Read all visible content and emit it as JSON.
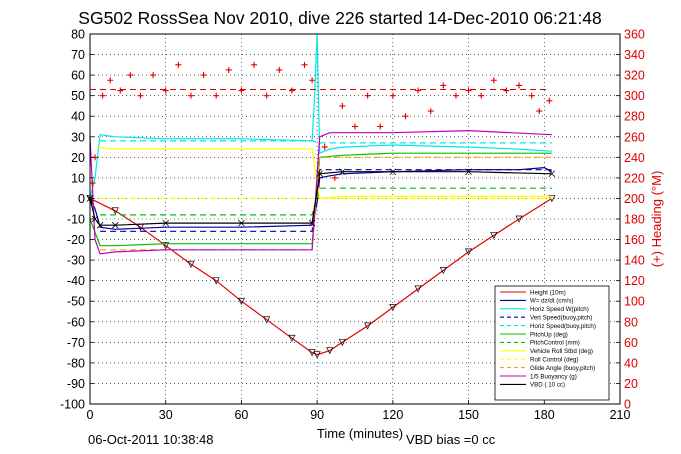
{
  "chart_data": {
    "type": "line",
    "title": "SG502 RossSea Nov 2010, dive 226 started 14-Dec-2010 06:21:48",
    "xlabel": "Time (minutes)",
    "ylabel_right": "(+) Heading (°M)",
    "xlim": [
      0,
      210
    ],
    "ylim": [
      -100,
      80
    ],
    "ylim_right": [
      0,
      360
    ],
    "x_ticks": [
      "0",
      "30",
      "60",
      "90",
      "120",
      "150",
      "180",
      "210"
    ],
    "y_ticks": [
      "80",
      "70",
      "60",
      "50",
      "40",
      "30",
      "20",
      "10",
      "0",
      "-10",
      "-20",
      "-30",
      "-40",
      "-50",
      "-60",
      "-70",
      "-80",
      "-90",
      "-100"
    ],
    "y_right_ticks": [
      "360",
      "340",
      "320",
      "300",
      "280",
      "260",
      "240",
      "220",
      "200",
      "180",
      "160",
      "140",
      "120",
      "100",
      "80",
      "60",
      "40",
      "20",
      "0"
    ],
    "grid": true,
    "footer_left": "06-Oct-2011 10:38:48",
    "footer_right": "VBD bias =0 cc",
    "legend_position": "bottom-right",
    "colors": {
      "height": "#e00000",
      "w": "#0000a0",
      "hspeed": "#00e8e8",
      "pitch": "#00c000",
      "roll": "#ffff00",
      "glide": "#ffa000",
      "buoy": "#c000c0",
      "vbd": "#000000",
      "heading": "#e00000",
      "axis_right": "#e00000"
    },
    "series": [
      {
        "name": "Height (10m)",
        "key": "height",
        "style": "solid",
        "x": [
          0,
          10,
          20,
          30,
          40,
          50,
          60,
          70,
          80,
          88,
          90,
          95,
          100,
          110,
          120,
          130,
          140,
          150,
          160,
          170,
          183
        ],
        "y": [
          0,
          -6,
          -14,
          -23,
          -32,
          -40,
          -50,
          -59,
          -68,
          -75,
          -76,
          -74,
          -70,
          -62,
          -53,
          -44,
          -35,
          -26,
          -18,
          -10,
          0
        ]
      },
      {
        "name": "W= dz/dt (cm/s)",
        "key": "w",
        "style": "solid",
        "x": [
          0,
          2,
          4,
          10,
          30,
          60,
          88,
          89,
          90,
          91,
          95,
          100,
          120,
          150,
          170,
          180,
          183
        ],
        "y": [
          0,
          -5,
          -14,
          -15,
          -14,
          -14,
          -13,
          -8,
          -2,
          10,
          11,
          12,
          13,
          14,
          14,
          15,
          13
        ]
      },
      {
        "name": "Horiz Speed W(pitch)",
        "key": "hspeed",
        "style": "solid",
        "x": [
          0,
          2,
          4,
          10,
          30,
          60,
          88,
          89,
          90,
          91,
          95,
          100,
          120,
          150,
          170,
          183
        ],
        "y": [
          0,
          10,
          31,
          30,
          29,
          29,
          28,
          50,
          80,
          22,
          24,
          25,
          26,
          25,
          24,
          23
        ]
      },
      {
        "name": "Vert Speed(buoy,pitch)",
        "key": "w",
        "style": "dashed",
        "x": [
          4,
          88,
          91,
          183
        ],
        "y": [
          -16,
          -16,
          14,
          14
        ]
      },
      {
        "name": "Horiz Speed(buoy,pitch)",
        "key": "hspeed",
        "style": "dashed",
        "x": [
          4,
          88,
          91,
          183
        ],
        "y": [
          28,
          28,
          27,
          27
        ]
      },
      {
        "name": "PitchUp (deg)",
        "key": "pitch",
        "style": "solid",
        "x": [
          0,
          4,
          10,
          30,
          60,
          88,
          91,
          100,
          120,
          150,
          183
        ],
        "y": [
          -10,
          -23,
          -23,
          -22,
          -22,
          -22,
          20,
          21,
          22,
          22,
          22
        ]
      },
      {
        "name": "PitchControl (mm)",
        "key": "pitch",
        "style": "dashed",
        "x": [
          4,
          88,
          91,
          183
        ],
        "y": [
          -8,
          -8,
          5,
          5
        ]
      },
      {
        "name": "Vehicle Roll Stbd (deg)",
        "key": "roll",
        "style": "solid",
        "x": [
          3,
          10,
          30,
          60,
          88,
          91,
          100,
          120,
          150,
          183
        ],
        "y": [
          25,
          24,
          24,
          24,
          24,
          0,
          1,
          1,
          1,
          1
        ]
      },
      {
        "name": "Roll Control (deg)",
        "key": "roll",
        "style": "dashed",
        "x": [
          4,
          88,
          91,
          183
        ],
        "y": [
          0,
          0,
          0,
          0
        ]
      },
      {
        "name": "Glide Angle (buoy,pitch)",
        "key": "glide",
        "style": "dashed",
        "x": [
          4,
          88,
          91,
          183
        ],
        "y": [
          -25,
          -25,
          20,
          20
        ]
      },
      {
        "name": "1/5 Buoyancy (g)",
        "key": "buoy",
        "style": "solid",
        "x": [
          0,
          2,
          4,
          10,
          30,
          60,
          88,
          91,
          95,
          120,
          150,
          183
        ],
        "y": [
          30,
          -20,
          -27,
          -26,
          -25,
          -25,
          -25,
          30,
          32,
          32,
          33,
          31
        ]
      },
      {
        "name": "VBD ( 10 cc)",
        "key": "vbd",
        "style": "solid",
        "x": [
          0,
          2,
          4,
          10,
          30,
          60,
          88,
          91,
          100,
          120,
          150,
          183
        ],
        "y": [
          0,
          -10,
          -13,
          -13,
          -12,
          -12,
          -12,
          12,
          13,
          13,
          13,
          12
        ]
      }
    ],
    "heading": {
      "name": "Heading (deg M)",
      "axis": "right",
      "x": [
        1,
        2,
        5,
        8,
        12,
        16,
        20,
        25,
        30,
        35,
        40,
        45,
        50,
        55,
        60,
        65,
        70,
        75,
        80,
        85,
        88,
        93,
        97,
        100,
        105,
        110,
        115,
        120,
        125,
        130,
        135,
        140,
        145,
        150,
        155,
        160,
        165,
        170,
        175,
        178,
        182
      ],
      "y": [
        215,
        240,
        300,
        315,
        305,
        320,
        300,
        320,
        305,
        330,
        300,
        320,
        300,
        325,
        305,
        330,
        300,
        325,
        305,
        330,
        315,
        250,
        220,
        290,
        270,
        300,
        270,
        300,
        280,
        305,
        285,
        310,
        300,
        305,
        300,
        315,
        305,
        310,
        300,
        285,
        295
      ]
    },
    "heading_dashed_level": 306
  }
}
